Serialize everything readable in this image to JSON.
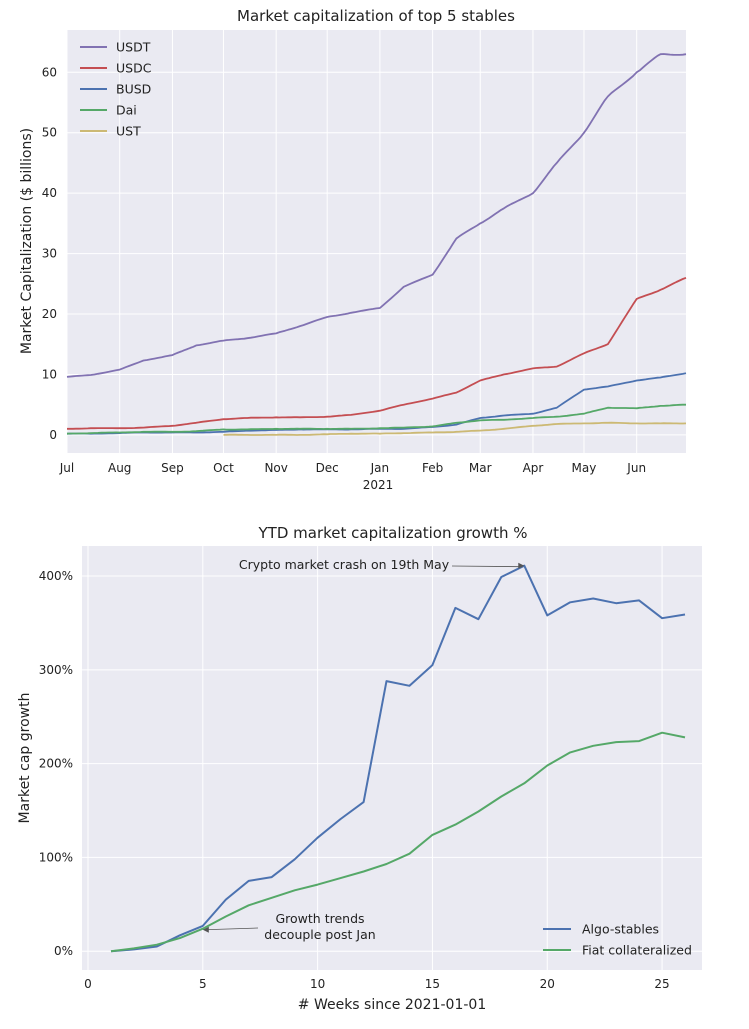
{
  "chart_data": [
    {
      "type": "line",
      "title": "Market capitalization of top 5 stables",
      "xlabel": "",
      "ylabel": "Market Capitalization ($ billions)",
      "x_ticks": [
        "Jul",
        "Aug",
        "Sep",
        "Oct",
        "Nov",
        "Dec",
        "Jan",
        "Feb",
        "Mar",
        "Apr",
        "May",
        "Jun"
      ],
      "x_year_label": "2021",
      "x": [
        "2020-07-01",
        "2020-07-15",
        "2020-08-01",
        "2020-08-15",
        "2020-09-01",
        "2020-09-15",
        "2020-10-01",
        "2020-10-15",
        "2020-11-01",
        "2020-11-15",
        "2020-12-01",
        "2020-12-15",
        "2021-01-01",
        "2021-01-15",
        "2021-02-01",
        "2021-02-15",
        "2021-03-01",
        "2021-03-15",
        "2021-04-01",
        "2021-04-15",
        "2021-05-01",
        "2021-05-15",
        "2021-06-01",
        "2021-06-15",
        "2021-06-30"
      ],
      "ylim": [
        -3,
        67
      ],
      "y_ticks": [
        0,
        10,
        20,
        30,
        40,
        50,
        60
      ],
      "grid": true,
      "legend": "top-left",
      "series": [
        {
          "name": "USDT",
          "color": "#8172b2",
          "values": [
            9.6,
            9.9,
            10.8,
            12.3,
            13.2,
            14.8,
            15.6,
            16.0,
            16.8,
            18.0,
            19.5,
            20.2,
            21.0,
            24.5,
            26.5,
            32.5,
            35.0,
            37.5,
            40.0,
            45.0,
            50.0,
            56.0,
            60.0,
            63.0,
            63.0
          ]
        },
        {
          "name": "USDC",
          "color": "#c44e52",
          "values": [
            1.0,
            1.1,
            1.1,
            1.2,
            1.5,
            2.0,
            2.6,
            2.8,
            2.9,
            2.9,
            3.0,
            3.3,
            4.0,
            5.0,
            6.0,
            7.0,
            9.0,
            10.0,
            11.0,
            11.3,
            13.5,
            15.0,
            22.5,
            24.0,
            26.0
          ]
        },
        {
          "name": "BUSD",
          "color": "#4c72b0",
          "values": [
            0.2,
            0.2,
            0.3,
            0.4,
            0.4,
            0.4,
            0.5,
            0.7,
            0.8,
            0.9,
            0.9,
            0.9,
            1.0,
            1.0,
            1.3,
            1.7,
            2.8,
            3.2,
            3.5,
            4.5,
            7.5,
            8.0,
            9.0,
            9.5,
            10.2
          ]
        },
        {
          "name": "Dai",
          "color": "#55a868",
          "values": [
            0.2,
            0.3,
            0.4,
            0.5,
            0.5,
            0.6,
            0.9,
            0.9,
            1.0,
            1.0,
            1.0,
            1.0,
            1.1,
            1.2,
            1.4,
            2.0,
            2.4,
            2.5,
            2.8,
            3.0,
            3.5,
            4.5,
            4.4,
            4.8,
            5.0
          ]
        },
        {
          "name": "UST",
          "color": "#ccb974",
          "start_index": 6,
          "values": [
            null,
            null,
            null,
            null,
            null,
            null,
            0.0,
            0.0,
            0.0,
            0.0,
            0.1,
            0.2,
            0.2,
            0.3,
            0.4,
            0.5,
            0.7,
            1.0,
            1.5,
            1.8,
            1.9,
            2.0,
            1.9,
            1.9,
            1.9
          ]
        }
      ]
    },
    {
      "type": "line",
      "title": "YTD market capitalization growth %",
      "xlabel": "# Weeks since 2021-01-01",
      "ylabel": "Market cap growth",
      "x": [
        1,
        2,
        3,
        4,
        5,
        6,
        7,
        8,
        9,
        10,
        11,
        12,
        13,
        14,
        15,
        16,
        17,
        18,
        19,
        20,
        21,
        22,
        23,
        24,
        25,
        26
      ],
      "xlim": [
        0,
        27
      ],
      "x_ticks": [
        0,
        5,
        10,
        15,
        20,
        25
      ],
      "ylim": [
        -20,
        432
      ],
      "y_ticks": [
        0,
        100,
        200,
        300,
        400
      ],
      "y_tick_labels": [
        "0%",
        "100%",
        "200%",
        "300%",
        "400%"
      ],
      "grid": true,
      "legend": "bottom-right",
      "series": [
        {
          "name": "Algo-stables",
          "color": "#4c72b0",
          "values": [
            0,
            2,
            5,
            17,
            27,
            55,
            75,
            79,
            98,
            121,
            141,
            159,
            288,
            283,
            305,
            366,
            354,
            399,
            411,
            358,
            372,
            376,
            371,
            374,
            355,
            359
          ]
        },
        {
          "name": "Fiat collateralized",
          "color": "#55a868",
          "values": [
            0,
            3,
            7,
            14,
            24,
            37,
            49,
            57,
            65,
            71,
            78,
            85,
            93,
            104,
            124,
            135,
            149,
            165,
            179,
            198,
            212,
            219,
            223,
            224,
            233,
            228
          ]
        }
      ],
      "annotations": [
        {
          "text": "Crypto market crash on 19th May",
          "x": 19,
          "y": 411
        },
        {
          "text_lines": [
            "Growth trends",
            "decouple post Jan"
          ],
          "x": 5,
          "y": 24
        }
      ]
    }
  ]
}
